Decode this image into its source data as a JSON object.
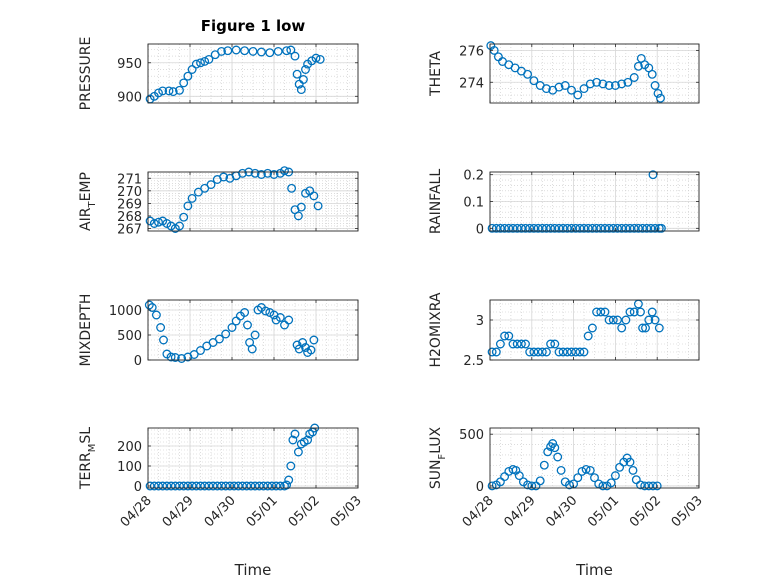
{
  "figure": {
    "title": "Figure 1 low"
  },
  "colors": {
    "marker": "#0072BD",
    "axis": "#262626",
    "grid": "#d6d6d6",
    "minor_grid": "#c8c8c8"
  },
  "x_ticks": [
    "04/28",
    "04/29",
    "04/30",
    "05/01",
    "05/02",
    "05/03"
  ],
  "chart_data": [
    {
      "type": "scatter",
      "title": "Figure 1 low",
      "ylabel": {
        "main": "PRESSURE",
        "sub": ""
      },
      "xlabel": "",
      "xlim": [
        0,
        5
      ],
      "ylim": [
        890,
        978
      ],
      "yticks": [
        900,
        950
      ],
      "ytick_labels": [
        "900",
        "950"
      ],
      "grid": true,
      "points": [
        [
          0.05,
          896
        ],
        [
          0.15,
          900
        ],
        [
          0.25,
          905
        ],
        [
          0.35,
          908
        ],
        [
          0.5,
          908
        ],
        [
          0.6,
          907
        ],
        [
          0.75,
          909
        ],
        [
          0.85,
          920
        ],
        [
          0.95,
          930
        ],
        [
          1.05,
          940
        ],
        [
          1.15,
          948
        ],
        [
          1.25,
          950
        ],
        [
          1.35,
          952
        ],
        [
          1.45,
          955
        ],
        [
          1.6,
          962
        ],
        [
          1.75,
          967
        ],
        [
          1.9,
          968
        ],
        [
          2.1,
          969
        ],
        [
          2.3,
          968
        ],
        [
          2.5,
          967
        ],
        [
          2.7,
          966
        ],
        [
          2.9,
          965
        ],
        [
          3.1,
          967
        ],
        [
          3.3,
          968
        ],
        [
          3.4,
          969
        ],
        [
          3.5,
          960
        ],
        [
          3.55,
          933
        ],
        [
          3.6,
          918
        ],
        [
          3.65,
          910
        ],
        [
          3.7,
          925
        ],
        [
          3.75,
          940
        ],
        [
          3.8,
          948
        ],
        [
          3.9,
          953
        ],
        [
          4.0,
          957
        ],
        [
          4.1,
          955
        ]
      ]
    },
    {
      "type": "scatter",
      "title": "",
      "ylabel": {
        "main": "THETA",
        "sub": ""
      },
      "xlabel": "",
      "xlim": [
        0,
        5
      ],
      "ylim": [
        272.7,
        276.4
      ],
      "yticks": [
        274,
        276
      ],
      "ytick_labels": [
        "274",
        "276"
      ],
      "grid": true,
      "points": [
        [
          0.02,
          276.3
        ],
        [
          0.1,
          276.0
        ],
        [
          0.2,
          275.6
        ],
        [
          0.3,
          275.3
        ],
        [
          0.45,
          275.1
        ],
        [
          0.6,
          274.9
        ],
        [
          0.75,
          274.7
        ],
        [
          0.9,
          274.5
        ],
        [
          1.05,
          274.1
        ],
        [
          1.2,
          273.8
        ],
        [
          1.35,
          273.6
        ],
        [
          1.5,
          273.5
        ],
        [
          1.65,
          273.7
        ],
        [
          1.8,
          273.8
        ],
        [
          1.95,
          273.5
        ],
        [
          2.1,
          273.2
        ],
        [
          2.25,
          273.6
        ],
        [
          2.4,
          273.9
        ],
        [
          2.55,
          274.0
        ],
        [
          2.7,
          273.9
        ],
        [
          2.85,
          273.8
        ],
        [
          3.0,
          273.8
        ],
        [
          3.15,
          273.9
        ],
        [
          3.3,
          274.0
        ],
        [
          3.45,
          274.3
        ],
        [
          3.55,
          275.0
        ],
        [
          3.62,
          275.5
        ],
        [
          3.7,
          275.1
        ],
        [
          3.8,
          274.9
        ],
        [
          3.88,
          274.5
        ],
        [
          3.95,
          273.8
        ],
        [
          4.02,
          273.3
        ],
        [
          4.08,
          273.0
        ]
      ]
    },
    {
      "type": "scatter",
      "title": "",
      "ylabel": {
        "main": "AIR",
        "sub": "T",
        "tail": "EMP"
      },
      "xlabel": "",
      "xlim": [
        0,
        5
      ],
      "ylim": [
        266.8,
        271.5
      ],
      "yticks": [
        267,
        268,
        269,
        270,
        271
      ],
      "ytick_labels": [
        "267",
        "268",
        "269",
        "270",
        "271"
      ],
      "grid": true,
      "points": [
        [
          0.05,
          267.6
        ],
        [
          0.15,
          267.4
        ],
        [
          0.25,
          267.5
        ],
        [
          0.35,
          267.6
        ],
        [
          0.45,
          267.4
        ],
        [
          0.55,
          267.2
        ],
        [
          0.65,
          267.0
        ],
        [
          0.75,
          267.2
        ],
        [
          0.85,
          267.9
        ],
        [
          0.95,
          268.8
        ],
        [
          1.05,
          269.4
        ],
        [
          1.2,
          269.9
        ],
        [
          1.35,
          270.2
        ],
        [
          1.5,
          270.5
        ],
        [
          1.65,
          270.9
        ],
        [
          1.8,
          271.1
        ],
        [
          1.95,
          271.0
        ],
        [
          2.1,
          271.2
        ],
        [
          2.25,
          271.4
        ],
        [
          2.4,
          271.5
        ],
        [
          2.55,
          271.4
        ],
        [
          2.7,
          271.3
        ],
        [
          2.85,
          271.4
        ],
        [
          3.0,
          271.3
        ],
        [
          3.15,
          271.4
        ],
        [
          3.25,
          271.6
        ],
        [
          3.35,
          271.5
        ],
        [
          3.42,
          270.2
        ],
        [
          3.5,
          268.5
        ],
        [
          3.58,
          268.0
        ],
        [
          3.65,
          268.7
        ],
        [
          3.75,
          269.8
        ],
        [
          3.85,
          270.0
        ],
        [
          3.95,
          269.6
        ],
        [
          4.05,
          268.8
        ]
      ]
    },
    {
      "type": "scatter",
      "title": "",
      "ylabel": {
        "main": "RAINFALL",
        "sub": ""
      },
      "xlabel": "",
      "xlim": [
        0,
        5
      ],
      "ylim": [
        -0.01,
        0.21
      ],
      "yticks": [
        0,
        0.1,
        0.2
      ],
      "ytick_labels": [
        "0",
        "0.1",
        "0.2"
      ],
      "grid": true,
      "points": [
        [
          0.05,
          0
        ],
        [
          0.15,
          0
        ],
        [
          0.25,
          0
        ],
        [
          0.35,
          0
        ],
        [
          0.45,
          0
        ],
        [
          0.55,
          0
        ],
        [
          0.65,
          0
        ],
        [
          0.75,
          0
        ],
        [
          0.85,
          0
        ],
        [
          0.95,
          0
        ],
        [
          1.05,
          0
        ],
        [
          1.15,
          0
        ],
        [
          1.25,
          0
        ],
        [
          1.35,
          0
        ],
        [
          1.45,
          0
        ],
        [
          1.55,
          0
        ],
        [
          1.65,
          0
        ],
        [
          1.75,
          0
        ],
        [
          1.85,
          0
        ],
        [
          1.95,
          0
        ],
        [
          2.05,
          0
        ],
        [
          2.15,
          0
        ],
        [
          2.25,
          0
        ],
        [
          2.35,
          0
        ],
        [
          2.45,
          0
        ],
        [
          2.55,
          0
        ],
        [
          2.65,
          0
        ],
        [
          2.75,
          0
        ],
        [
          2.85,
          0
        ],
        [
          2.95,
          0
        ],
        [
          3.05,
          0
        ],
        [
          3.15,
          0
        ],
        [
          3.25,
          0
        ],
        [
          3.35,
          0
        ],
        [
          3.45,
          0
        ],
        [
          3.55,
          0
        ],
        [
          3.65,
          0
        ],
        [
          3.75,
          0
        ],
        [
          3.85,
          0
        ],
        [
          3.9,
          0.2
        ],
        [
          3.95,
          0
        ],
        [
          4.05,
          0
        ],
        [
          4.1,
          0
        ]
      ]
    },
    {
      "type": "scatter",
      "title": "",
      "ylabel": {
        "main": "MIXDEPTH",
        "sub": ""
      },
      "xlabel": "",
      "xlim": [
        0,
        5
      ],
      "ylim": [
        0,
        1200
      ],
      "yticks": [
        0,
        500,
        1000
      ],
      "ytick_labels": [
        "0",
        "500",
        "1000"
      ],
      "grid": true,
      "points": [
        [
          0.03,
          1100
        ],
        [
          0.1,
          1050
        ],
        [
          0.2,
          900
        ],
        [
          0.3,
          650
        ],
        [
          0.37,
          400
        ],
        [
          0.45,
          120
        ],
        [
          0.55,
          60
        ],
        [
          0.65,
          50
        ],
        [
          0.8,
          30
        ],
        [
          0.95,
          60
        ],
        [
          1.1,
          110
        ],
        [
          1.25,
          190
        ],
        [
          1.4,
          280
        ],
        [
          1.55,
          350
        ],
        [
          1.7,
          420
        ],
        [
          1.85,
          520
        ],
        [
          2.0,
          650
        ],
        [
          2.1,
          780
        ],
        [
          2.2,
          880
        ],
        [
          2.3,
          950
        ],
        [
          2.37,
          700
        ],
        [
          2.42,
          350
        ],
        [
          2.48,
          220
        ],
        [
          2.55,
          500
        ],
        [
          2.62,
          1000
        ],
        [
          2.7,
          1050
        ],
        [
          2.8,
          980
        ],
        [
          2.9,
          950
        ],
        [
          3.0,
          900
        ],
        [
          3.05,
          800
        ],
        [
          3.15,
          850
        ],
        [
          3.25,
          700
        ],
        [
          3.35,
          800
        ],
        [
          3.55,
          300
        ],
        [
          3.6,
          220
        ],
        [
          3.68,
          350
        ],
        [
          3.75,
          250
        ],
        [
          3.8,
          150
        ],
        [
          3.88,
          200
        ],
        [
          3.95,
          400
        ]
      ]
    },
    {
      "type": "scatter",
      "title": "",
      "ylabel": {
        "main": "H2OMIXRA",
        "sub": ""
      },
      "xlabel": "",
      "xlim": [
        0,
        5
      ],
      "ylim": [
        2.5,
        3.25
      ],
      "yticks": [
        2.5,
        3
      ],
      "ytick_labels": [
        "2.5",
        "3"
      ],
      "grid": true,
      "points": [
        [
          0.05,
          2.6
        ],
        [
          0.15,
          2.6
        ],
        [
          0.25,
          2.7
        ],
        [
          0.35,
          2.8
        ],
        [
          0.45,
          2.8
        ],
        [
          0.55,
          2.7
        ],
        [
          0.65,
          2.7
        ],
        [
          0.75,
          2.7
        ],
        [
          0.85,
          2.7
        ],
        [
          0.95,
          2.6
        ],
        [
          1.05,
          2.6
        ],
        [
          1.15,
          2.6
        ],
        [
          1.25,
          2.6
        ],
        [
          1.35,
          2.6
        ],
        [
          1.45,
          2.7
        ],
        [
          1.55,
          2.7
        ],
        [
          1.65,
          2.6
        ],
        [
          1.75,
          2.6
        ],
        [
          1.85,
          2.6
        ],
        [
          1.95,
          2.6
        ],
        [
          2.05,
          2.6
        ],
        [
          2.15,
          2.6
        ],
        [
          2.25,
          2.6
        ],
        [
          2.35,
          2.8
        ],
        [
          2.45,
          2.9
        ],
        [
          2.55,
          3.1
        ],
        [
          2.65,
          3.1
        ],
        [
          2.75,
          3.1
        ],
        [
          2.85,
          3.0
        ],
        [
          2.95,
          3.0
        ],
        [
          3.05,
          3.0
        ],
        [
          3.15,
          2.9
        ],
        [
          3.25,
          3.0
        ],
        [
          3.35,
          3.1
        ],
        [
          3.45,
          3.1
        ],
        [
          3.55,
          3.2
        ],
        [
          3.6,
          3.1
        ],
        [
          3.65,
          2.9
        ],
        [
          3.72,
          2.9
        ],
        [
          3.8,
          3.0
        ],
        [
          3.88,
          3.1
        ],
        [
          3.95,
          3.0
        ],
        [
          4.05,
          2.9
        ]
      ]
    },
    {
      "type": "scatter",
      "title": "",
      "ylabel": {
        "main": "TERR",
        "sub": "M",
        "tail": "SL"
      },
      "xlabel": "Time",
      "xlim": [
        0,
        5
      ],
      "ylim": [
        -10,
        290
      ],
      "yticks": [
        0,
        100,
        200
      ],
      "ytick_labels": [
        "0",
        "100",
        "200"
      ],
      "grid": true,
      "points": [
        [
          0.05,
          0
        ],
        [
          0.15,
          0
        ],
        [
          0.25,
          0
        ],
        [
          0.35,
          0
        ],
        [
          0.45,
          0
        ],
        [
          0.55,
          0
        ],
        [
          0.65,
          0
        ],
        [
          0.75,
          0
        ],
        [
          0.85,
          0
        ],
        [
          0.95,
          0
        ],
        [
          1.05,
          0
        ],
        [
          1.15,
          0
        ],
        [
          1.25,
          0
        ],
        [
          1.35,
          0
        ],
        [
          1.45,
          0
        ],
        [
          1.55,
          0
        ],
        [
          1.65,
          0
        ],
        [
          1.75,
          0
        ],
        [
          1.85,
          0
        ],
        [
          1.95,
          0
        ],
        [
          2.05,
          0
        ],
        [
          2.15,
          0
        ],
        [
          2.25,
          0
        ],
        [
          2.35,
          0
        ],
        [
          2.45,
          0
        ],
        [
          2.55,
          0
        ],
        [
          2.65,
          0
        ],
        [
          2.75,
          0
        ],
        [
          2.85,
          0
        ],
        [
          2.95,
          0
        ],
        [
          3.05,
          0
        ],
        [
          3.15,
          0
        ],
        [
          3.25,
          0
        ],
        [
          3.3,
          5
        ],
        [
          3.35,
          30
        ],
        [
          3.4,
          100
        ],
        [
          3.45,
          230
        ],
        [
          3.5,
          260
        ],
        [
          3.58,
          170
        ],
        [
          3.65,
          210
        ],
        [
          3.72,
          220
        ],
        [
          3.8,
          230
        ],
        [
          3.85,
          260
        ],
        [
          3.92,
          270
        ],
        [
          3.97,
          290
        ]
      ]
    },
    {
      "type": "scatter",
      "title": "",
      "ylabel": {
        "main": "SUN",
        "sub": "F",
        "tail": "LUX"
      },
      "xlabel": "Time",
      "xlim": [
        0,
        5
      ],
      "ylim": [
        -20,
        560
      ],
      "yticks": [
        0,
        500
      ],
      "ytick_labels": [
        "0",
        "500"
      ],
      "grid": true,
      "points": [
        [
          0.05,
          0
        ],
        [
          0.15,
          10
        ],
        [
          0.25,
          40
        ],
        [
          0.35,
          90
        ],
        [
          0.45,
          140
        ],
        [
          0.55,
          160
        ],
        [
          0.62,
          150
        ],
        [
          0.7,
          100
        ],
        [
          0.8,
          40
        ],
        [
          0.9,
          10
        ],
        [
          1.0,
          0
        ],
        [
          1.1,
          0
        ],
        [
          1.2,
          50
        ],
        [
          1.3,
          200
        ],
        [
          1.38,
          330
        ],
        [
          1.45,
          380
        ],
        [
          1.5,
          410
        ],
        [
          1.55,
          370
        ],
        [
          1.62,
          280
        ],
        [
          1.7,
          150
        ],
        [
          1.8,
          40
        ],
        [
          1.9,
          10
        ],
        [
          2.0,
          20
        ],
        [
          2.1,
          80
        ],
        [
          2.2,
          140
        ],
        [
          2.3,
          160
        ],
        [
          2.4,
          150
        ],
        [
          2.5,
          80
        ],
        [
          2.6,
          20
        ],
        [
          2.7,
          0
        ],
        [
          2.8,
          0
        ],
        [
          2.9,
          30
        ],
        [
          3.0,
          100
        ],
        [
          3.1,
          180
        ],
        [
          3.2,
          230
        ],
        [
          3.28,
          270
        ],
        [
          3.35,
          230
        ],
        [
          3.42,
          150
        ],
        [
          3.5,
          60
        ],
        [
          3.6,
          10
        ],
        [
          3.7,
          0
        ],
        [
          3.8,
          0
        ],
        [
          3.9,
          0
        ],
        [
          4.0,
          0
        ]
      ]
    }
  ]
}
